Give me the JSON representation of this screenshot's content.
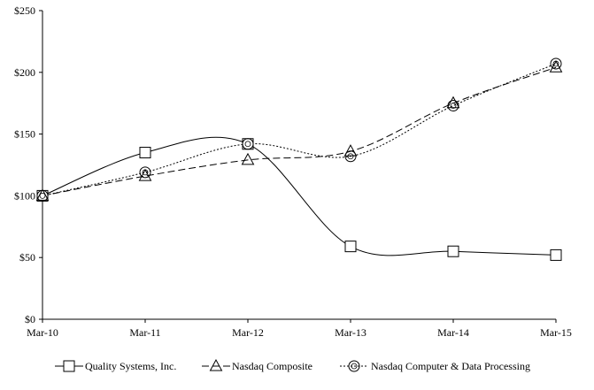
{
  "chart_data": {
    "type": "line",
    "title": "",
    "xlabel": "",
    "ylabel": "",
    "categories": [
      "Mar-10",
      "Mar-11",
      "Mar-12",
      "Mar-13",
      "Mar-14",
      "Mar-15"
    ],
    "y_ticks": [
      "$0",
      "$50",
      "$100",
      "$150",
      "$200",
      "$250"
    ],
    "y_tick_values": [
      0,
      50,
      100,
      150,
      200,
      250
    ],
    "ylim": [
      0,
      250
    ],
    "grid": false,
    "legend_position": "bottom",
    "series": [
      {
        "name": "Quality Systems, Inc.",
        "values": [
          100,
          135,
          142,
          59,
          55,
          52
        ],
        "marker": "square",
        "line_style": "solid",
        "color": "#000000"
      },
      {
        "name": "Nasdaq Composite",
        "values": [
          100,
          116,
          129,
          136,
          175,
          204
        ],
        "marker": "triangle",
        "line_style": "dashed",
        "color": "#000000"
      },
      {
        "name": "Nasdaq Computer & Data Processing",
        "values": [
          100,
          119,
          142,
          132,
          173,
          207
        ],
        "marker": "circle",
        "line_style": "dotted",
        "color": "#000000"
      }
    ]
  }
}
